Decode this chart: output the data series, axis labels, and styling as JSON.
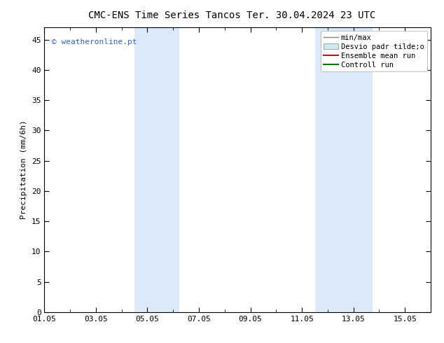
{
  "title": "CMC-ENS Time Series Tancos",
  "title2": "Ter. 30.04.2024 23 UTC",
  "ylabel": "Precipitation (mm/6h)",
  "ylim": [
    0,
    47
  ],
  "yticks": [
    0,
    5,
    10,
    15,
    20,
    25,
    30,
    35,
    40,
    45
  ],
  "total_days": 15,
  "xtick_labels": [
    "01.05",
    "03.05",
    "05.05",
    "07.05",
    "09.05",
    "11.05",
    "13.05",
    "15.05"
  ],
  "xtick_positions_days": [
    0,
    2,
    4,
    6,
    8,
    10,
    12,
    14
  ],
  "shaded_bands": [
    {
      "start_day": 3.5,
      "end_day": 5.25,
      "color": "#daeaf8"
    },
    {
      "start_day": 10.5,
      "end_day": 12.75,
      "color": "#daeaf8"
    }
  ],
  "watermark_text": "© weatheronline.pt",
  "watermark_color": "#3366cc",
  "legend_entries": [
    {
      "label": "min/max",
      "type": "line",
      "color": "#888888",
      "lw": 1.0
    },
    {
      "label": "Desvio padr tilde;o",
      "type": "patch",
      "color": "#d0e8f0",
      "edgecolor": "#aaaaaa"
    },
    {
      "label": "Ensemble mean run",
      "type": "line",
      "color": "#dd0000",
      "lw": 1.5
    },
    {
      "label": "Controll run",
      "type": "line",
      "color": "#007700",
      "lw": 1.5
    }
  ],
  "bg_color": "#ffffff",
  "title_fontsize": 10,
  "label_fontsize": 8,
  "tick_fontsize": 8,
  "legend_fontsize": 7.5
}
